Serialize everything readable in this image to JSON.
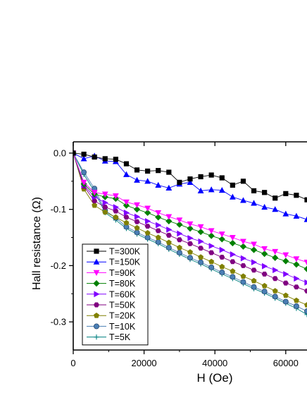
{
  "chart_data": {
    "type": "line",
    "xlabel": "H (Oe)",
    "ylabel": "Hall resistance (Ω)",
    "xlim": [
      0,
      66000
    ],
    "ylim": [
      -0.35,
      0.02
    ],
    "xticks": [
      0,
      20000,
      40000,
      60000
    ],
    "xtick_labels": [
      "0",
      "20000",
      "40000",
      "60000"
    ],
    "yticks": [
      0.0,
      -0.1,
      -0.2,
      -0.3
    ],
    "ytick_labels": [
      "0.0",
      "-0.1",
      "-0.2",
      "-0.3"
    ],
    "grid": false,
    "legend_position": "bottom-left",
    "x": [
      0,
      3000,
      6000,
      9000,
      12000,
      15000,
      18000,
      21000,
      24000,
      27000,
      30000,
      33000,
      36000,
      39000,
      42000,
      45000,
      48000,
      51000,
      54000,
      57000,
      60000,
      63000,
      66000
    ],
    "series": [
      {
        "name": "T=300K",
        "marker": "square",
        "color": "#000000",
        "values": [
          0.0,
          -0.002,
          -0.007,
          -0.01,
          -0.011,
          -0.019,
          -0.03,
          -0.032,
          -0.031,
          -0.034,
          -0.052,
          -0.046,
          -0.042,
          -0.039,
          -0.044,
          -0.057,
          -0.05,
          -0.067,
          -0.07,
          -0.08,
          -0.072,
          -0.075,
          -0.083
        ]
      },
      {
        "name": "T=150K",
        "marker": "triangle-up",
        "color": "#0000ff",
        "values": [
          0.0,
          -0.01,
          -0.005,
          -0.014,
          -0.015,
          -0.038,
          -0.048,
          -0.05,
          -0.057,
          -0.062,
          -0.055,
          -0.052,
          -0.067,
          -0.065,
          -0.066,
          -0.078,
          -0.084,
          -0.089,
          -0.096,
          -0.1,
          -0.108,
          -0.112,
          -0.118
        ]
      },
      {
        "name": "T=90K",
        "marker": "triangle-down",
        "color": "#ff00ff",
        "values": [
          0.0,
          -0.052,
          -0.07,
          -0.073,
          -0.076,
          -0.087,
          -0.092,
          -0.098,
          -0.106,
          -0.113,
          -0.119,
          -0.126,
          -0.131,
          -0.138,
          -0.144,
          -0.15,
          -0.157,
          -0.162,
          -0.17,
          -0.175,
          -0.181,
          -0.188,
          -0.194
        ]
      },
      {
        "name": "T=80K",
        "marker": "diamond",
        "color": "#008000",
        "values": [
          0.0,
          -0.055,
          -0.073,
          -0.078,
          -0.081,
          -0.093,
          -0.1,
          -0.106,
          -0.114,
          -0.121,
          -0.127,
          -0.134,
          -0.14,
          -0.147,
          -0.153,
          -0.16,
          -0.166,
          -0.172,
          -0.179,
          -0.186,
          -0.192,
          -0.198,
          -0.206
        ]
      },
      {
        "name": "T=60K",
        "marker": "triangle-right",
        "color": "#8000ff",
        "values": [
          0.0,
          -0.057,
          -0.078,
          -0.088,
          -0.096,
          -0.106,
          -0.113,
          -0.121,
          -0.128,
          -0.136,
          -0.143,
          -0.151,
          -0.157,
          -0.165,
          -0.172,
          -0.18,
          -0.187,
          -0.194,
          -0.201,
          -0.208,
          -0.215,
          -0.223,
          -0.23
        ]
      },
      {
        "name": "T=50K",
        "marker": "hexagon",
        "color": "#800080",
        "values": [
          0.0,
          -0.059,
          -0.085,
          -0.096,
          -0.103,
          -0.114,
          -0.122,
          -0.13,
          -0.138,
          -0.146,
          -0.154,
          -0.161,
          -0.169,
          -0.177,
          -0.185,
          -0.193,
          -0.2,
          -0.208,
          -0.215,
          -0.223,
          -0.231,
          -0.238,
          -0.245
        ]
      },
      {
        "name": "T=20K",
        "marker": "pentagon",
        "color": "#808000",
        "values": [
          0.0,
          -0.064,
          -0.093,
          -0.105,
          -0.114,
          -0.124,
          -0.133,
          -0.142,
          -0.15,
          -0.159,
          -0.168,
          -0.176,
          -0.185,
          -0.193,
          -0.202,
          -0.21,
          -0.219,
          -0.227,
          -0.236,
          -0.245,
          -0.253,
          -0.262,
          -0.27
        ]
      },
      {
        "name": "T=10K",
        "marker": "sphere",
        "color": "#4a7fb5",
        "values": [
          0.0,
          -0.034,
          -0.063,
          -0.102,
          -0.115,
          -0.131,
          -0.141,
          -0.15,
          -0.158,
          -0.168,
          -0.177,
          -0.186,
          -0.194,
          -0.203,
          -0.212,
          -0.22,
          -0.229,
          -0.238,
          -0.246,
          -0.255,
          -0.264,
          -0.272,
          -0.281
        ]
      },
      {
        "name": "T=5K",
        "marker": "plus",
        "color": "#008080",
        "values": [
          0.0,
          -0.038,
          -0.068,
          -0.106,
          -0.119,
          -0.134,
          -0.144,
          -0.153,
          -0.161,
          -0.171,
          -0.18,
          -0.189,
          -0.197,
          -0.206,
          -0.215,
          -0.223,
          -0.232,
          -0.241,
          -0.249,
          -0.258,
          -0.267,
          -0.276,
          -0.287
        ]
      }
    ]
  }
}
